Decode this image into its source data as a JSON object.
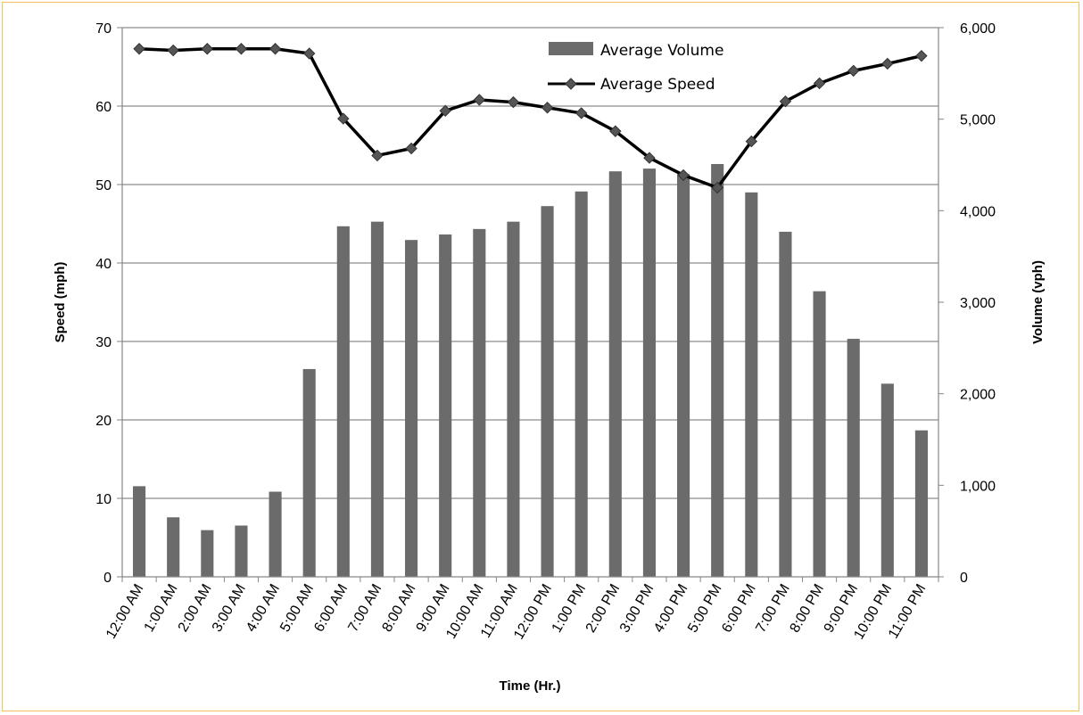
{
  "chart_data": {
    "type": "bar+line",
    "x": [
      "12:00 AM",
      "1:00 AM",
      "2:00 AM",
      "3:00 AM",
      "4:00 AM",
      "5:00 AM",
      "6:00 AM",
      "7:00 AM",
      "8:00 AM",
      "9:00 AM",
      "10:00 AM",
      "11:00 AM",
      "12:00 PM",
      "1:00 PM",
      "2:00 PM",
      "3:00 PM",
      "4:00 PM",
      "5:00 PM",
      "6:00 PM",
      "7:00 PM",
      "8:00 PM",
      "9:00 PM",
      "10:00 PM",
      "11:00 PM"
    ],
    "series": [
      {
        "name": "Average Volume",
        "kind": "bar",
        "axis": "right",
        "color": "#6b6b6b",
        "values": [
          990,
          650,
          510,
          560,
          930,
          2270,
          3830,
          3880,
          3680,
          3740,
          3800,
          3880,
          4050,
          4210,
          4430,
          4460,
          4400,
          4510,
          4200,
          3770,
          3120,
          2600,
          2110,
          1600
        ]
      },
      {
        "name": "Average Speed",
        "kind": "line",
        "axis": "left",
        "color": "#000000",
        "marker_color": "#555555",
        "values": [
          67.3,
          67.1,
          67.3,
          67.3,
          67.3,
          66.7,
          58.4,
          53.7,
          54.6,
          59.4,
          60.8,
          60.5,
          59.8,
          59.1,
          56.8,
          53.4,
          51.2,
          49.6,
          55.5,
          60.6,
          62.9,
          64.5,
          65.4,
          66.4
        ]
      }
    ],
    "xlabel": "Time (Hr.)",
    "ylabel": "Speed (mph)",
    "y2label": "Volume (vph)",
    "ylim": [
      0,
      70
    ],
    "y2lim": [
      0,
      6000
    ],
    "yticks": [
      "0",
      "10",
      "20",
      "30",
      "40",
      "50",
      "60",
      "70"
    ],
    "y2ticks": [
      "0",
      "1,000",
      "2,000",
      "3,000",
      "4,000",
      "5,000",
      "6,000"
    ],
    "grid": true,
    "legend_position": "top-center",
    "gridline_color": "#8c8c8c",
    "frame_color": "#f2c25c"
  }
}
